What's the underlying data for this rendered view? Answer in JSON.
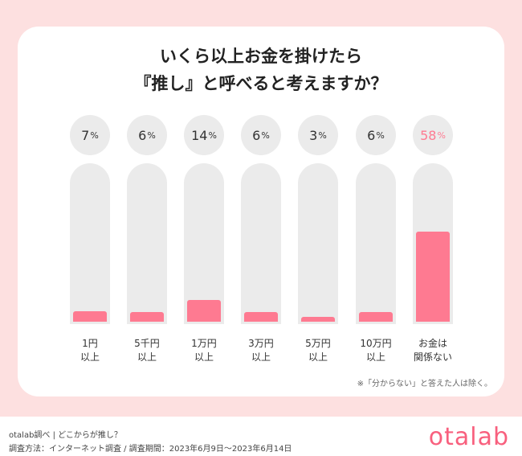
{
  "title_lines": [
    "いくら以上お金を掛けたら",
    "『推し』と呼べると考えますか？"
  ],
  "chart_data": {
    "type": "bar",
    "categories": [
      "1円\n以上",
      "5千円\n以上",
      "1万円\n以上",
      "3万円\n以上",
      "5万円\n以上",
      "10万円\n以上",
      "お金は\n関係ない"
    ],
    "values": [
      7,
      6,
      14,
      6,
      3,
      6,
      58
    ],
    "value_labels": [
      "7",
      "6",
      "14",
      "6",
      "3",
      "6",
      "58"
    ],
    "unit": "%",
    "ylim": [
      0,
      100
    ],
    "highlight_index": 6,
    "colors": {
      "bar": "#fe7a91",
      "track": "#ebebeb",
      "highlight_text": "#fe7a91"
    }
  },
  "note": "※「分からない」と答えた人は除く。",
  "footer": {
    "line1": "otalab調べ | どこからが推し？",
    "line2": "調査方法：インターネット調査 / 調査期間：2023年6月9日〜2023年6月14日",
    "logo": "otalab"
  }
}
